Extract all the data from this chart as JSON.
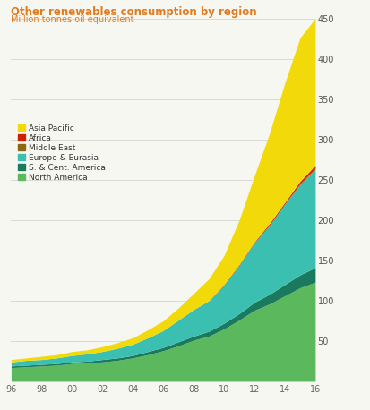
{
  "title": "Other renewables consumption by region",
  "subtitle": "Million tonnes oil equivalent",
  "title_color": "#e07b20",
  "subtitle_color": "#e07b20",
  "years": [
    1996,
    1997,
    1998,
    1999,
    2000,
    2001,
    2002,
    2003,
    2004,
    2005,
    2006,
    2007,
    2008,
    2009,
    2010,
    2011,
    2012,
    2013,
    2014,
    2015,
    2016
  ],
  "series": {
    "North America": [
      17,
      18,
      19,
      20,
      22,
      23,
      24,
      26,
      29,
      33,
      38,
      44,
      51,
      56,
      65,
      76,
      88,
      96,
      106,
      116,
      123
    ],
    "S. & Cent. America": [
      2,
      2,
      2,
      2,
      2,
      2,
      3,
      3,
      3,
      4,
      4,
      5,
      5,
      6,
      7,
      8,
      10,
      12,
      14,
      16,
      18
    ],
    "Europe & Eurasia": [
      5,
      6,
      6,
      7,
      8,
      9,
      10,
      12,
      14,
      17,
      21,
      27,
      33,
      38,
      47,
      60,
      74,
      86,
      100,
      112,
      122
    ],
    "Middle East": [
      0,
      0,
      0,
      0,
      0,
      0,
      0,
      0,
      0,
      0,
      0,
      0,
      0,
      0,
      0,
      0,
      0,
      0,
      0,
      1,
      1
    ],
    "Africa": [
      0,
      0,
      0,
      0,
      0,
      0,
      0,
      0,
      0,
      0,
      0,
      0,
      0,
      0,
      1,
      1,
      1,
      2,
      2,
      3,
      4
    ],
    "Asia Pacific": [
      3,
      3,
      4,
      4,
      5,
      5,
      6,
      7,
      8,
      10,
      12,
      15,
      20,
      27,
      36,
      55,
      82,
      112,
      148,
      178,
      182
    ]
  },
  "colors": {
    "North America": "#5cb85c",
    "S. & Cent. America": "#1a7a5e",
    "Europe & Eurasia": "#3bbfb0",
    "Middle East": "#8b6914",
    "Africa": "#cc2200",
    "Asia Pacific": "#f2d90a"
  },
  "ylim": [
    0,
    450
  ],
  "yticks": [
    50,
    100,
    150,
    200,
    250,
    300,
    350,
    400,
    450
  ],
  "xtick_labels": [
    "96",
    "98",
    "00",
    "02",
    "04",
    "06",
    "08",
    "10",
    "12",
    "14",
    "16"
  ],
  "xtick_years": [
    1996,
    1998,
    2000,
    2002,
    2004,
    2006,
    2008,
    2010,
    2012,
    2014,
    2016
  ],
  "background_color": "#f7f7f2",
  "legend_order": [
    "Asia Pacific",
    "Africa",
    "Middle East",
    "Europe & Eurasia",
    "S. & Cent. America",
    "North America"
  ],
  "stack_order": [
    "North America",
    "S. & Cent. America",
    "Europe & Eurasia",
    "Middle East",
    "Africa",
    "Asia Pacific"
  ]
}
